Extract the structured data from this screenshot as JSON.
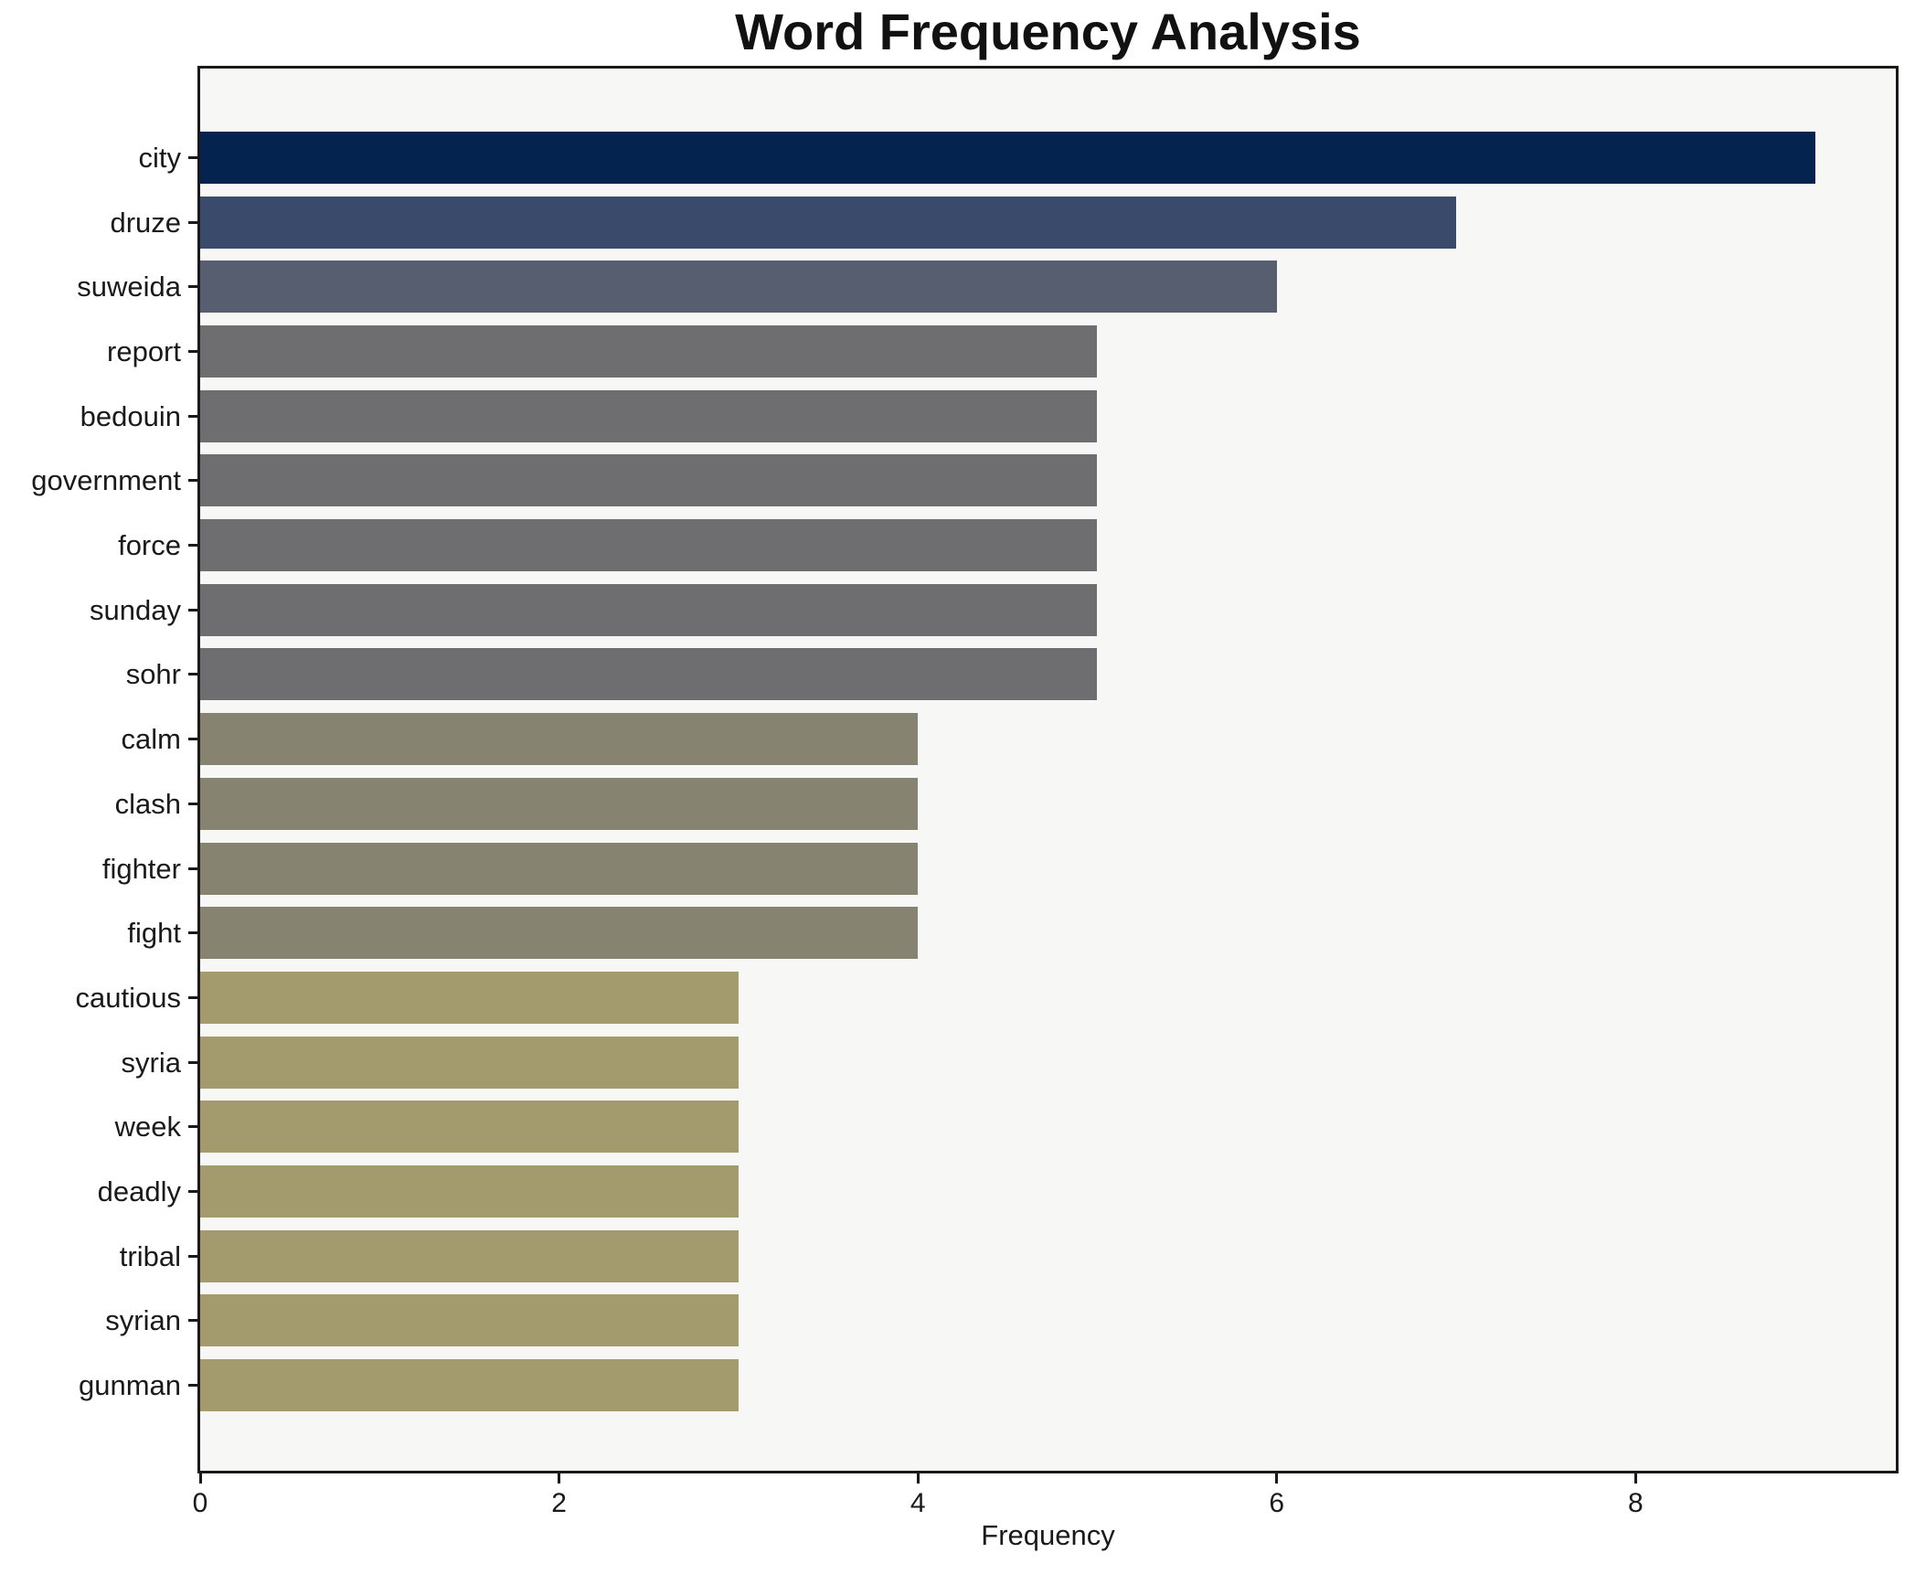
{
  "chart_data": {
    "type": "bar",
    "orientation": "horizontal",
    "title": "Word Frequency Analysis",
    "xlabel": "Frequency",
    "ylabel": "",
    "categories": [
      "city",
      "druze",
      "suweida",
      "report",
      "bedouin",
      "government",
      "force",
      "sunday",
      "sohr",
      "calm",
      "clash",
      "fighter",
      "fight",
      "cautious",
      "syria",
      "week",
      "deadly",
      "tribal",
      "syrian",
      "gunman"
    ],
    "values": [
      9,
      7,
      6,
      5,
      5,
      5,
      5,
      5,
      5,
      4,
      4,
      4,
      4,
      3,
      3,
      3,
      3,
      3,
      3,
      3
    ],
    "bar_colors": [
      "#04234e",
      "#3a4a6b",
      "#565e70",
      "#6e6e70",
      "#6e6e70",
      "#6e6e70",
      "#6e6e70",
      "#6e6e70",
      "#6e6e70",
      "#878371",
      "#878371",
      "#878371",
      "#878371",
      "#a39a6d",
      "#a39a6d",
      "#a39a6d",
      "#a39a6d",
      "#a39a6d",
      "#a39a6d",
      "#a39a6d"
    ],
    "x_ticks": [
      0,
      2,
      4,
      6,
      8
    ],
    "xlim": [
      0,
      9.45
    ],
    "grid": false,
    "legend": false,
    "plot_background": "#f7f7f6",
    "figure_background": "#ffffff",
    "spine_color": "#1a1a1a",
    "value_color_map": {
      "9": "#04234e",
      "7": "#3a4a6b",
      "6": "#565e70",
      "5": "#6e6e70",
      "4": "#878371",
      "3": "#a39a6d"
    }
  }
}
